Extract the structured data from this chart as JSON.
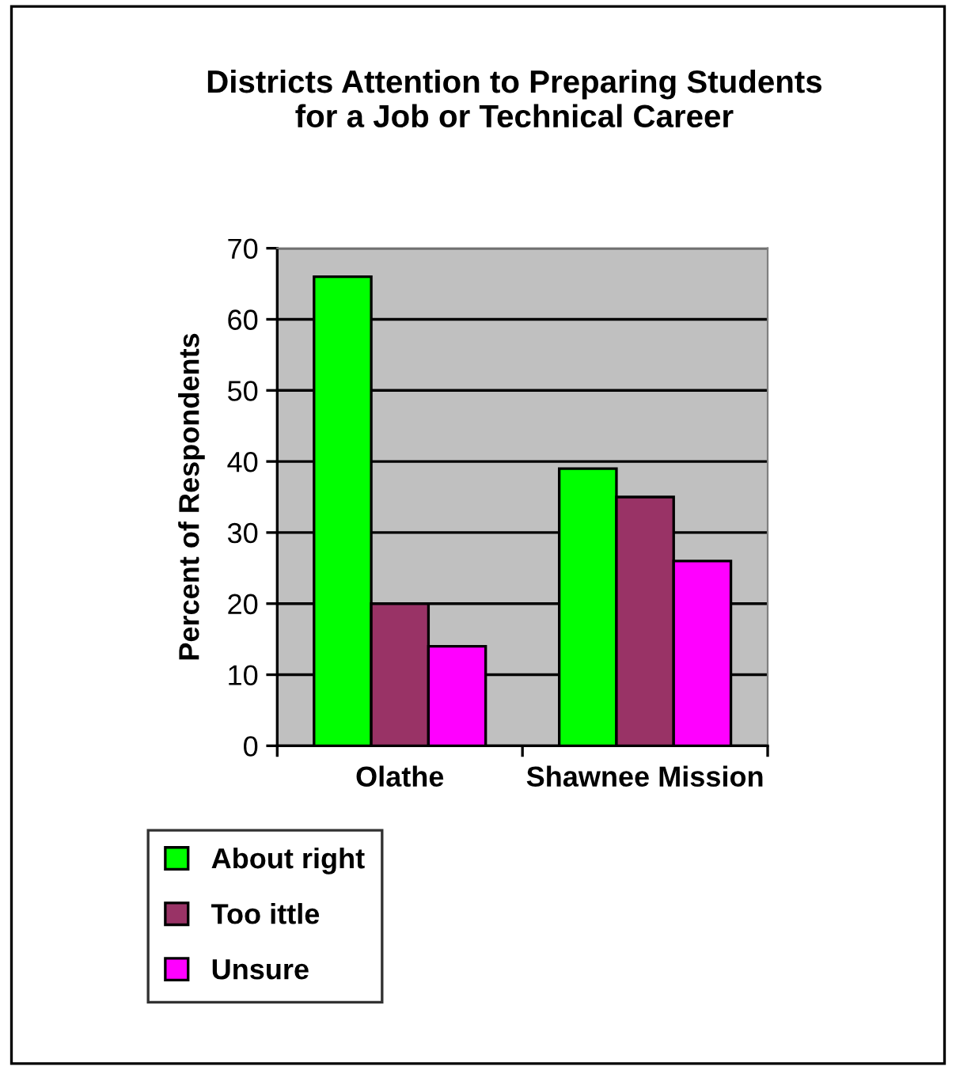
{
  "chart_data": {
    "type": "bar",
    "title": "Districts Attention to Preparing Students for a Job or Technical Career",
    "ylabel": "Percent of Respondents",
    "categories": [
      "Olathe",
      "Shawnee Mission"
    ],
    "series": [
      {
        "name": "About right",
        "color": "#00ff00",
        "values": [
          66,
          39
        ]
      },
      {
        "name": "Too ittle",
        "color": "#993366",
        "values": [
          20,
          35
        ]
      },
      {
        "name": "Unsure",
        "color": "#ff00ff",
        "values": [
          14,
          26
        ]
      }
    ],
    "ylim": [
      0,
      70
    ],
    "yticks": [
      0,
      10,
      20,
      30,
      40,
      50,
      60,
      70
    ],
    "grid": "y",
    "legend": "bottom left"
  }
}
